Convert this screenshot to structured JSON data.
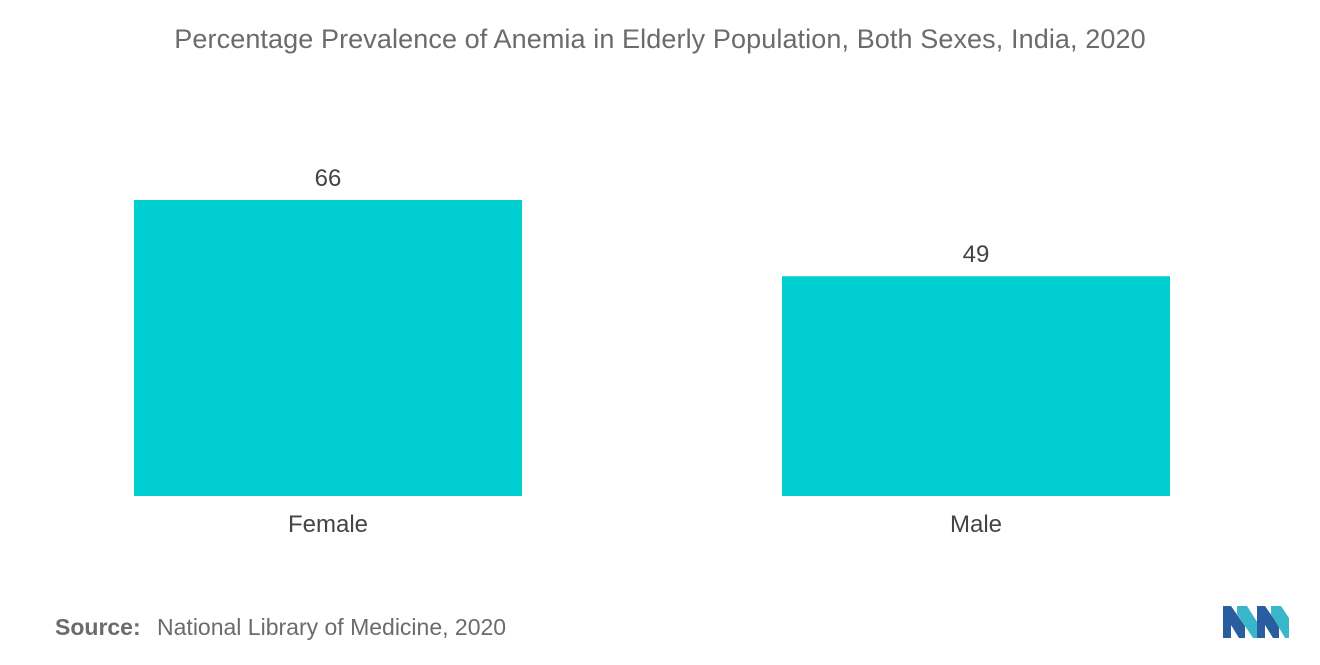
{
  "chart_data": {
    "type": "bar",
    "title": "Percentage Prevalence of Anemia in Elderly Population, Both Sexes, India, 2020",
    "categories": [
      "Female",
      "Male"
    ],
    "values": [
      66,
      49
    ],
    "data_labels": [
      "66",
      "49"
    ],
    "xlabel": "",
    "ylabel": "",
    "ylim": [
      0,
      66
    ],
    "grid": false,
    "legend": "none",
    "bar_color": "#00ced1"
  },
  "source": {
    "label": "Source:",
    "text": "National Library of Medicine, 2020"
  },
  "logo": {
    "icon": "mordor-intelligence-logo-icon",
    "colors": [
      "#2a5d9f",
      "#39b6c9"
    ]
  }
}
